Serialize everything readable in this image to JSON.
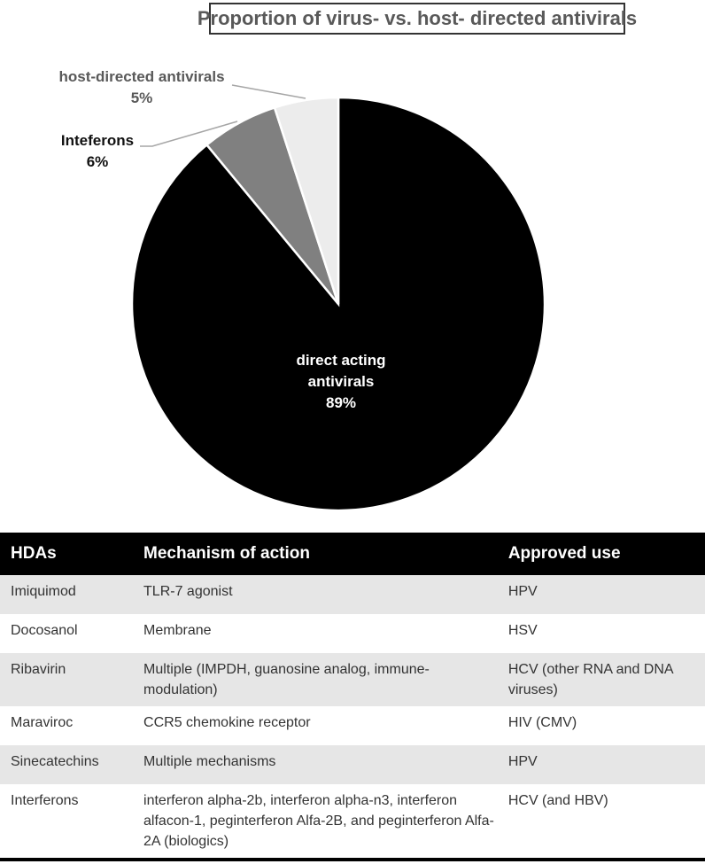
{
  "chart_data": {
    "type": "pie",
    "title": "Proportion of virus- vs. host- directed antivirals",
    "slices": [
      {
        "label": "direct acting antivirals",
        "value": 89,
        "display": "89%",
        "color": "#000000"
      },
      {
        "label": "Inteferons",
        "value": 6,
        "display": "6%",
        "color": "#808080"
      },
      {
        "label": "host-directed antivirals",
        "value": 5,
        "display": "5%",
        "color": "#ececec"
      }
    ],
    "start_angle": "12 o'clock, clockwise",
    "legend": "none (leader-line labels)"
  },
  "labels": {
    "host": {
      "name": "host-directed antivirals",
      "pct": "5%"
    },
    "ifn": {
      "name": "Inteferons",
      "pct": "6%"
    },
    "daa": {
      "name1": "direct acting",
      "name2": "antivirals",
      "pct": "89%"
    }
  },
  "table": {
    "headers": [
      "HDAs",
      "Mechanism of action",
      "Approved use"
    ],
    "rows": [
      [
        "Imiquimod",
        "TLR-7 agonist",
        "HPV"
      ],
      [
        "Docosanol",
        "Membrane",
        "HSV"
      ],
      [
        "Ribavirin",
        "Multiple (IMPDH, guanosine analog, immune-modulation)",
        "HCV (other RNA and DNA viruses)"
      ],
      [
        "Maraviroc",
        "CCR5 chemokine receptor",
        "HIV (CMV)"
      ],
      [
        "Sinecatechins",
        "Multiple mechanisms",
        "HPV"
      ],
      [
        "Interferons",
        "interferon alpha-2b, interferon alpha-n3, interferon alfacon-1, peginterferon Alfa-2B, and peginterferon Alfa-2A (biologics)",
        "HCV (and HBV)"
      ]
    ]
  }
}
